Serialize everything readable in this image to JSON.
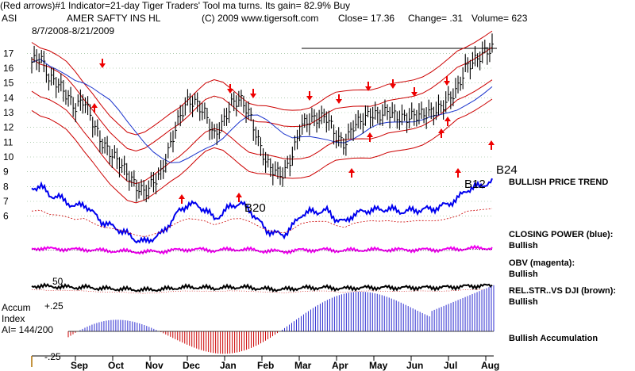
{
  "header": {
    "line1": "(Red arrows)#1 Indicator=21-day Tiger Traders' Tool ma turns.  Its gain= 82.9% Buy",
    "symbol": "ASI",
    "name": "AMER SAFTY INS HL",
    "copyright": "(C) 2009 www.tigersoft.com",
    "close": "Close=  17.36",
    "change": "Change= .31",
    "volume": "Volume= 623",
    "date_range": "8/7/2008-8/21/2009"
  },
  "side_labels": {
    "price_trend": "BULLISH PRICE TREND",
    "closing_power_title": "CLOSING POWER (blue):",
    "closing_power_status": "Bullish",
    "obv_title": "OBV (magenta):",
    "obv_status": "Bullish",
    "relstr_title": "REL.STR..VS DJI (brown):",
    "relstr_status": "Bullish",
    "accumulation": "Bullish Accumulation",
    "accum_title": "Accum",
    "accum_index": "Index",
    "ai_value": "AI= 144/200",
    "accum_hi": "+.25",
    "accum_lo": "-.25",
    "fifty": "50"
  },
  "chart_data": {
    "type": "line",
    "title": "AMER SAFTY INS HL",
    "y_ticks": [
      "17",
      "16",
      "15",
      "14",
      "13",
      "12",
      "11",
      "10",
      "9",
      "8",
      "7",
      "6"
    ],
    "ylim": [
      5.5,
      17.5
    ],
    "months": [
      "Sep",
      "Oct",
      "Nov",
      "Dec",
      "Jan",
      "Feb",
      "Mar",
      "Apr",
      "May",
      "Jun",
      "Jul",
      "Aug"
    ],
    "price_close": [
      16.4,
      16.8,
      15.3,
      15.0,
      14.2,
      13.3,
      13.9,
      12.4,
      11.0,
      10.3,
      9.7,
      8.9,
      8.0,
      7.6,
      8.3,
      9.0,
      10.9,
      12.7,
      13.8,
      13.6,
      12.9,
      11.4,
      12.3,
      13.6,
      13.9,
      13.0,
      11.2,
      9.6,
      9.0,
      8.8,
      10.1,
      12.1,
      12.5,
      12.6,
      12.7,
      11.4,
      10.8,
      12.1,
      12.5,
      12.9,
      12.8,
      13.1,
      12.7,
      12.6,
      12.8,
      12.9,
      13.0,
      13.3,
      13.9,
      14.6,
      16.1,
      16.5,
      17.0,
      17.36
    ],
    "signals": [
      {
        "label": "B20",
        "price": 7.8
      },
      {
        "label": "B12",
        "price": 8.0
      },
      {
        "label": "B24",
        "price": 8.4
      }
    ],
    "accum_ylim": [
      -0.25,
      0.25
    ],
    "colors": {
      "price": "#000000",
      "bands": "#cc0000",
      "ma": "#1a33cc",
      "closing_power": "#0000ee",
      "obv": "#ee00ee",
      "rel_str": "#000000",
      "accum_pos": "#2a2ad0",
      "accum_neg": "#cc0000",
      "arrows": "#ee0000"
    }
  }
}
